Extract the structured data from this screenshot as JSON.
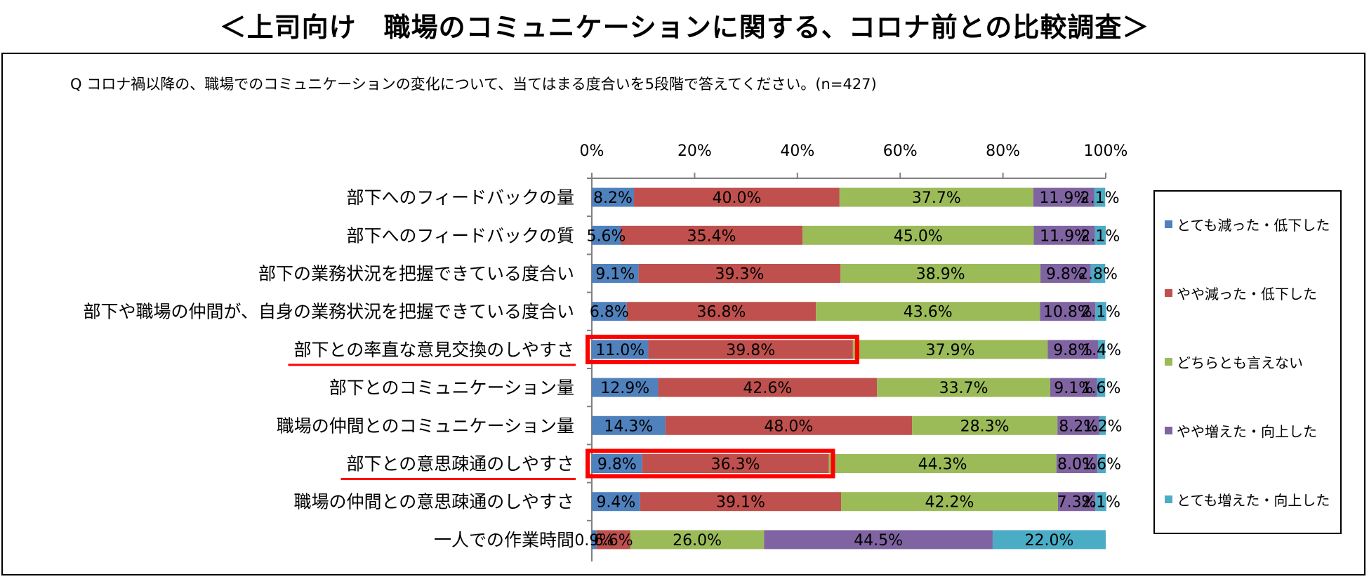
{
  "title": "＜上司向け　職場のコミュニケーションに関する、コロナ前との比較調査＞",
  "question": "Q コロナ禍以降の、職場でのコミュニケーションの変化について、当てはまる度合いを5段階で答えてください。(n=427)",
  "chart_data": {
    "type": "bar",
    "orientation": "horizontal",
    "stacked": "percent",
    "xlim": [
      0,
      100
    ],
    "x_ticks": [
      "0%",
      "20%",
      "40%",
      "60%",
      "80%",
      "100%"
    ],
    "x_tick_values": [
      0,
      20,
      40,
      60,
      80,
      100
    ],
    "legend_position": "right",
    "categories": [
      "部下へのフィードバックの量",
      "部下へのフィードバックの質",
      "部下の業務状況を把握できている度合い",
      "部下や職場の仲間が、自身の業務状況を把握できている度合い",
      "部下との率直な意見交換のしやすさ",
      "部下とのコミュニケーション量",
      "職場の仲間とのコミュニケーション量",
      "部下との意思疎通のしやすさ",
      "職場の仲間との意思疎通のしやすさ",
      "一人での作業時間"
    ],
    "highlighted_categories": [
      4,
      7
    ],
    "series": [
      {
        "name": "とても減った・低下した",
        "color": "#4F81BD",
        "values": [
          8.2,
          5.6,
          9.1,
          6.8,
          11.0,
          12.9,
          14.3,
          9.8,
          9.4,
          0.9
        ],
        "labels": [
          "8.2%",
          "5.6%",
          "9.1%",
          "6.8%",
          "11.0%",
          "12.9%",
          "14.3%",
          "9.8%",
          "9.4%",
          "0.9%"
        ]
      },
      {
        "name": "やや減った・低下した",
        "color": "#C0504D",
        "values": [
          40.0,
          35.4,
          39.3,
          36.8,
          39.8,
          42.6,
          48.0,
          36.3,
          39.1,
          6.6
        ],
        "labels": [
          "40.0%",
          "35.4%",
          "39.3%",
          "36.8%",
          "39.8%",
          "42.6%",
          "48.0%",
          "36.3%",
          "39.1%",
          "6.6%"
        ]
      },
      {
        "name": "どちらとも言えない",
        "color": "#9BBB59",
        "values": [
          37.7,
          45.0,
          38.9,
          43.6,
          37.9,
          33.7,
          28.3,
          44.3,
          42.2,
          26.0
        ],
        "labels": [
          "37.7%",
          "45.0%",
          "38.9%",
          "43.6%",
          "37.9%",
          "33.7%",
          "28.3%",
          "44.3%",
          "42.2%",
          "26.0%"
        ]
      },
      {
        "name": "やや増えた・向上した",
        "color": "#8064A2",
        "values": [
          11.9,
          11.9,
          9.8,
          10.8,
          9.8,
          9.1,
          8.2,
          8.0,
          7.3,
          44.5
        ],
        "labels": [
          "11.9%",
          "11.9%",
          "9.8%",
          "10.8%",
          "9.8%",
          "9.1%",
          "8.2%",
          "8.0%",
          "7.3%",
          "44.5%"
        ]
      },
      {
        "name": "とても増えた・向上した",
        "color": "#4BACC6",
        "values": [
          2.1,
          2.1,
          2.8,
          2.1,
          1.4,
          1.6,
          1.2,
          1.6,
          2.1,
          22.0
        ],
        "labels": [
          "2.1%",
          "2.1%",
          "2.8%",
          "2.1%",
          "1.4%",
          "1.6%",
          "1.2%",
          "1.6%",
          "2.1%",
          "22.0%"
        ]
      }
    ]
  },
  "colors": {
    "highlight": "#FF0000",
    "axis": "#808080"
  }
}
